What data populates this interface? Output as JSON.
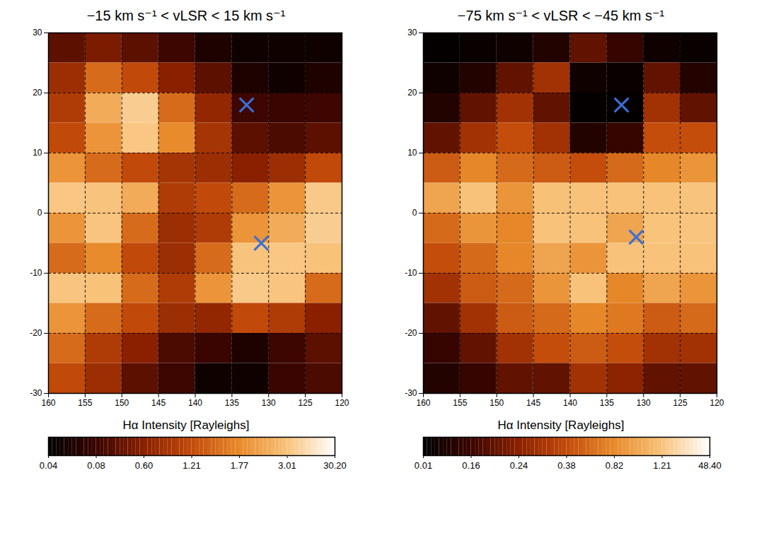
{
  "chart_data": [
    {
      "type": "heatmap",
      "title": "−15 km s⁻¹ < vLSR < 15 km s⁻¹",
      "x": [
        157.5,
        152.5,
        147.5,
        142.5,
        137.5,
        132.5,
        127.5,
        122.5
      ],
      "y": [
        27.5,
        22.5,
        17.5,
        12.5,
        7.5,
        2.5,
        -2.5,
        -7.5,
        -12.5,
        -17.5,
        -22.5,
        -27.5
      ],
      "values": [
        [
          0.3,
          0.5,
          0.3,
          0.1,
          0.06,
          0.05,
          0.05,
          0.05
        ],
        [
          0.8,
          1.5,
          1.2,
          0.6,
          0.3,
          0.06,
          0.05,
          0.06
        ],
        [
          1.0,
          2.5,
          8.0,
          1.5,
          0.7,
          0.1,
          0.08,
          0.1
        ],
        [
          1.2,
          2.0,
          5.0,
          1.8,
          0.9,
          0.3,
          0.2,
          0.3
        ],
        [
          2.0,
          1.5,
          1.2,
          0.9,
          0.8,
          0.6,
          0.8,
          1.2
        ],
        [
          5.0,
          3.5,
          2.5,
          1.0,
          1.2,
          1.5,
          2.0,
          6.0
        ],
        [
          2.0,
          4.0,
          1.5,
          0.8,
          1.0,
          2.0,
          2.5,
          8.0
        ],
        [
          1.5,
          1.8,
          1.2,
          0.8,
          1.5,
          3.5,
          5.0,
          3.0
        ],
        [
          4.0,
          3.0,
          1.5,
          1.0,
          2.0,
          6.0,
          4.0,
          1.5
        ],
        [
          2.0,
          1.5,
          1.2,
          0.8,
          0.7,
          1.2,
          1.0,
          0.6
        ],
        [
          1.5,
          1.0,
          0.6,
          0.2,
          0.08,
          0.06,
          0.1,
          0.3
        ],
        [
          1.2,
          0.8,
          0.3,
          0.1,
          0.05,
          0.05,
          0.08,
          0.2
        ]
      ],
      "xlim": [
        160,
        120
      ],
      "ylim": [
        -30,
        30
      ],
      "xticks": [
        160,
        155,
        150,
        145,
        140,
        135,
        130,
        125,
        120
      ],
      "yticks": [
        -30,
        -20,
        -10,
        0,
        10,
        20,
        30
      ],
      "grid": true,
      "color_label": "Hα Intensity [Rayleighs]",
      "color_ticks": [
        {
          "value": 0.04,
          "label": "0.04"
        },
        {
          "value": 0.08,
          "label": "0.08"
        },
        {
          "value": 0.6,
          "label": "0.60"
        },
        1.21,
        1.77,
        3.01,
        {
          "value": 30.2,
          "label": "30.20"
        }
      ],
      "markers": {
        "x": [
          133,
          131
        ],
        "y": [
          18,
          -5
        ],
        "color": "#3a6fd8",
        "marker": "x"
      }
    },
    {
      "type": "heatmap",
      "title": "−75 km s⁻¹ < vLSR < −45 km s⁻¹",
      "x": [
        157.5,
        152.5,
        147.5,
        142.5,
        137.5,
        132.5,
        127.5,
        122.5
      ],
      "y": [
        27.5,
        22.5,
        17.5,
        12.5,
        7.5,
        2.5,
        -2.5,
        -7.5,
        -12.5,
        -17.5,
        -22.5,
        -27.5
      ],
      "values": [
        [
          0.02,
          0.03,
          0.05,
          0.1,
          0.2,
          0.15,
          0.05,
          0.03
        ],
        [
          0.05,
          0.1,
          0.2,
          0.3,
          0.05,
          0.03,
          0.2,
          0.1
        ],
        [
          0.1,
          0.2,
          0.3,
          0.2,
          0.02,
          0.02,
          0.3,
          0.2
        ],
        [
          0.2,
          0.3,
          0.4,
          0.3,
          0.1,
          0.15,
          0.4,
          0.4
        ],
        [
          0.5,
          0.8,
          0.6,
          0.5,
          0.4,
          0.6,
          0.8,
          0.9
        ],
        [
          1.0,
          1.3,
          0.9,
          1.2,
          1.5,
          1.3,
          1.5,
          2.0
        ],
        [
          0.6,
          0.9,
          0.8,
          1.3,
          1.5,
          1.0,
          1.6,
          2.5
        ],
        [
          0.4,
          0.6,
          0.8,
          1.0,
          0.9,
          1.4,
          1.3,
          1.5
        ],
        [
          0.3,
          0.5,
          0.6,
          0.9,
          1.3,
          0.8,
          1.0,
          0.9
        ],
        [
          0.2,
          0.3,
          0.5,
          0.6,
          0.8,
          0.7,
          0.5,
          0.6
        ],
        [
          0.15,
          0.2,
          0.3,
          0.4,
          0.5,
          0.4,
          0.3,
          0.3
        ],
        [
          0.1,
          0.15,
          0.2,
          0.2,
          0.3,
          0.25,
          0.2,
          0.2
        ]
      ],
      "xlim": [
        160,
        120
      ],
      "ylim": [
        -30,
        30
      ],
      "xticks": [
        160,
        155,
        150,
        145,
        140,
        135,
        130,
        125,
        120
      ],
      "yticks": [
        -30,
        -20,
        -10,
        0,
        10,
        20,
        30
      ],
      "grid": true,
      "color_label": "Hα Intensity [Rayleighs]",
      "color_ticks": [
        0.01,
        0.16,
        0.24,
        0.38,
        0.82,
        1.21,
        {
          "value": 48.4,
          "label": "48.40"
        }
      ],
      "markers": {
        "x": [
          133,
          131
        ],
        "y": [
          18,
          -4
        ],
        "color": "#3a6fd8",
        "marker": "x"
      }
    }
  ]
}
